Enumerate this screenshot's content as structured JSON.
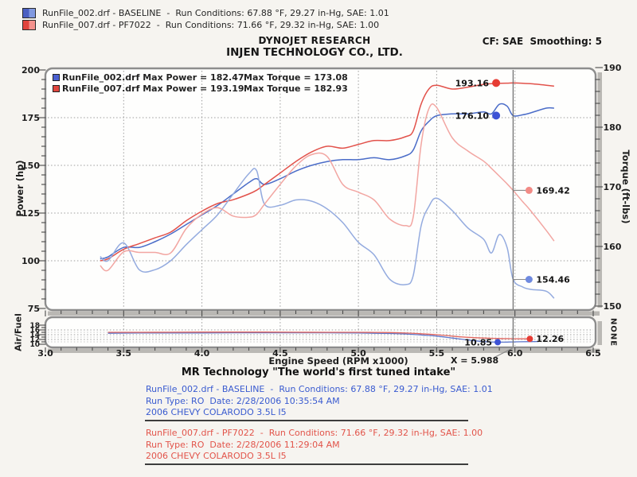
{
  "header": {
    "title1": "DYNOJET RESEARCH",
    "title2": "INJEN TECHNOLOGY CO., LTD.",
    "correction": "CF: SAE  Smoothing: 5",
    "legend": [
      {
        "text": "RunFile_002.drf - BASELINE  -  Run Conditions: 67.88 °F, 29.27 in-Hg, SAE: 1.01",
        "color": "#4a5fc2",
        "color_light": "#8199e0"
      },
      {
        "text": "RunFile_007.drf - PF7022  -  Run Conditions: 71.66 °F, 29.32 in-Hg, SAE: 1.00",
        "color": "#e0453e",
        "color_light": "#f4928d"
      }
    ]
  },
  "chart_data": {
    "type": "line",
    "x_axis": {
      "label": "Engine Speed (RPM x1000)",
      "range": [
        3.0,
        6.5
      ],
      "tick_labels": [
        "3.0",
        "3.5",
        "4.0",
        "4.5",
        "5.0",
        "5.5",
        "6.0",
        "6.5"
      ],
      "minor_step": 0.1,
      "grid_x": [
        3.5,
        4.0,
        4.5,
        5.0,
        5.5,
        6.0
      ]
    },
    "cursor": {
      "x": 5.988,
      "label": "X = 5.988"
    },
    "panels": [
      {
        "name": "power-torque",
        "left_axis": {
          "label": "Power (hp)",
          "range": [
            75,
            200
          ],
          "major_ticks": [
            200,
            175,
            150,
            125,
            100,
            75
          ],
          "minor_step": 5
        },
        "right_axis": {
          "label": "Torque (ft-lbs)",
          "range": [
            150,
            190
          ],
          "major_ticks": [
            190,
            180,
            170,
            160,
            150
          ],
          "minor_step": 2
        },
        "gridlines_hp": [
          175,
          150,
          125,
          100
        ],
        "x": [
          3.35,
          3.4,
          3.5,
          3.6,
          3.7,
          3.8,
          3.9,
          4.0,
          4.1,
          4.2,
          4.3,
          4.35,
          4.4,
          4.5,
          4.6,
          4.7,
          4.8,
          4.9,
          5.0,
          5.1,
          5.2,
          5.3,
          5.35,
          5.4,
          5.45,
          5.5,
          5.6,
          5.7,
          5.8,
          5.85,
          5.9,
          5.95,
          5.988,
          6.05,
          6.1,
          6.2,
          6.25
        ],
        "series": [
          {
            "name": "RunFile_002.drf Power",
            "axis": "left",
            "color": "#4a6cc8",
            "values": [
              101,
              102,
              107,
              107,
              110,
              114,
              119,
              124,
              129,
              135,
              141,
              143,
              140,
              143,
              147,
              150,
              152,
              153,
              153,
              154,
              153,
              155,
              158,
              168,
              173,
              176,
              177,
              177,
              178,
              177,
              182,
              181,
              176.1,
              176.5,
              177.5,
              180,
              180
            ]
          },
          {
            "name": "RunFile_007.drf Power",
            "axis": "left",
            "color": "#e2524b",
            "values": [
              100,
              101,
              106,
              109,
              112,
              115,
              121,
              126,
              130,
              132,
              135,
              137,
              140,
              146,
              152,
              157,
              160,
              159,
              161,
              163,
              163,
              165,
              168,
              182,
              190,
              192,
              190,
              191,
              192.5,
              192.8,
              193,
              193.1,
              193.2,
              193,
              192.8,
              192,
              191.5
            ]
          },
          {
            "name": "RunFile_002.drf Torque",
            "axis": "right",
            "color": "#94abdf",
            "values": [
              158.3,
              157.6,
              160.6,
              156.1,
              156.1,
              157.6,
              160.3,
              162.8,
              165.3,
              168.8,
              172.2,
              172.7,
              167.1,
              166.9,
              167.8,
              167.6,
              166.3,
              164.0,
              160.7,
              158.6,
              154.5,
              153.6,
              155.1,
              163.4,
              166.7,
              168.1,
              166.0,
              163.1,
              161.2,
              158.9,
              162.0,
              159.8,
              154.5,
              153.2,
              152.8,
              152.5,
              151.3
            ]
          },
          {
            "name": "RunFile_007.drf Torque",
            "axis": "right",
            "color": "#f2a6a2",
            "values": [
              156.8,
              156.0,
              159.1,
              159.0,
              159.0,
              158.9,
              163.0,
              165.4,
              166.5,
              165.1,
              164.9,
              165.4,
              167.1,
              170.4,
              173.5,
              175.4,
              175.1,
              170.4,
              169.1,
              167.8,
              164.6,
              163.5,
              164.9,
              177.0,
              183.1,
              183.3,
              178.2,
              176.0,
              174.3,
              173.1,
              171.8,
              170.5,
              169.4,
              167.5,
              166.0,
              162.7,
              160.9
            ]
          }
        ],
        "annotations": [
          {
            "label": "193.16",
            "value": 193.16,
            "rpm": 5.88,
            "axis": "left",
            "dot_color": "#e63c34",
            "side": "left"
          },
          {
            "label": "176.10",
            "value": 176.1,
            "rpm": 5.88,
            "axis": "left",
            "dot_color": "#3d52d5",
            "side": "left"
          },
          {
            "label": "169.42",
            "value": 169.42,
            "rpm": 6.09,
            "axis": "right",
            "dot_color": "#f28b86",
            "side": "right",
            "leader": true
          },
          {
            "label": "154.46",
            "value": 154.46,
            "rpm": 6.09,
            "axis": "right",
            "dot_color": "#6f8ae0",
            "side": "right",
            "leader": true
          }
        ],
        "legend": [
          {
            "file": "RunFile_002.drf",
            "max_power": 182.47,
            "max_torque": 173.08,
            "max_power_text": "Max Power = 182.47",
            "max_torque_text": "Max Torque = 173.08",
            "color": "#4a5fd0"
          },
          {
            "file": "RunFile_007.drf",
            "max_power": 193.19,
            "max_torque": 182.93,
            "max_power_text": "Max Power = 193.19",
            "max_torque_text": "Max Torque = 182.93",
            "color": "#e0463e"
          }
        ]
      },
      {
        "name": "air-fuel",
        "left_axis": {
          "label": "Air/Fuel",
          "range": [
            10,
            18
          ],
          "major_ticks": [
            18,
            16,
            14,
            12,
            10
          ],
          "minor_step": 1
        },
        "right_axis": {
          "label": "NONE"
        },
        "gridlines_af": [
          16,
          15,
          14,
          13,
          12,
          11
        ],
        "series": [
          {
            "name": "RunFile_002.drf Air/Fuel",
            "color": "#5c77cc",
            "x": [
              3.4,
              3.6,
              3.8,
              4.0,
              4.2,
              4.4,
              4.6,
              4.8,
              5.0,
              5.1,
              5.2,
              5.3,
              5.4,
              5.5,
              5.6,
              5.7,
              5.8,
              5.9,
              6.0,
              6.1,
              6.15
            ],
            "values": [
              14.6,
              14.7,
              14.7,
              14.7,
              14.8,
              14.8,
              14.8,
              14.8,
              14.7,
              14.6,
              14.5,
              14.3,
              13.9,
              13.4,
              12.6,
              11.8,
              11.1,
              10.85,
              11.0,
              11.1,
              11.15
            ]
          },
          {
            "name": "RunFile_007.drf Air/Fuel",
            "color": "#e2665f",
            "x": [
              3.4,
              3.6,
              3.8,
              4.0,
              4.2,
              4.4,
              4.6,
              4.8,
              5.0,
              5.1,
              5.2,
              5.3,
              5.4,
              5.5,
              5.6,
              5.7,
              5.8,
              5.9,
              6.0,
              6.1
            ],
            "values": [
              15.0,
              15.0,
              15.05,
              15.1,
              15.1,
              15.1,
              15.05,
              15.0,
              15.0,
              14.95,
              14.9,
              14.7,
              14.4,
              14.0,
              13.4,
              12.9,
              12.6,
              12.4,
              12.3,
              12.26
            ]
          }
        ],
        "annotations": [
          {
            "label": "10.85",
            "value": 10.85,
            "rpm": 5.89,
            "dot_color": "#3d52d5",
            "side": "left"
          },
          {
            "label": "12.26",
            "value": 12.26,
            "rpm": 6.095,
            "dot_color": "#e63c34",
            "side": "right"
          }
        ]
      }
    ]
  },
  "footer": {
    "tagline": "MR Technology \"The world's first tuned intake\"",
    "runs": [
      {
        "color": "#3a5bd0",
        "lines": [
          "RunFile_002.drf - BASELINE  -  Run Conditions: 67.88 °F, 29.27 in-Hg, SAE: 1.01",
          "Run Type: RO  Date: 2/28/2006 10:35:54 AM",
          "2006 CHEVY COLARODO 3.5L I5"
        ]
      },
      {
        "color": "#e2544a",
        "lines": [
          "RunFile_007.drf - PF7022  -  Run Conditions: 71.66 °F, 29.32 in-Hg, SAE: 1.00",
          "Run Type: RO  Date: 2/28/2006 11:29:04 AM",
          "2006 CHEVY COLARODO 3.5L I5"
        ]
      }
    ]
  }
}
